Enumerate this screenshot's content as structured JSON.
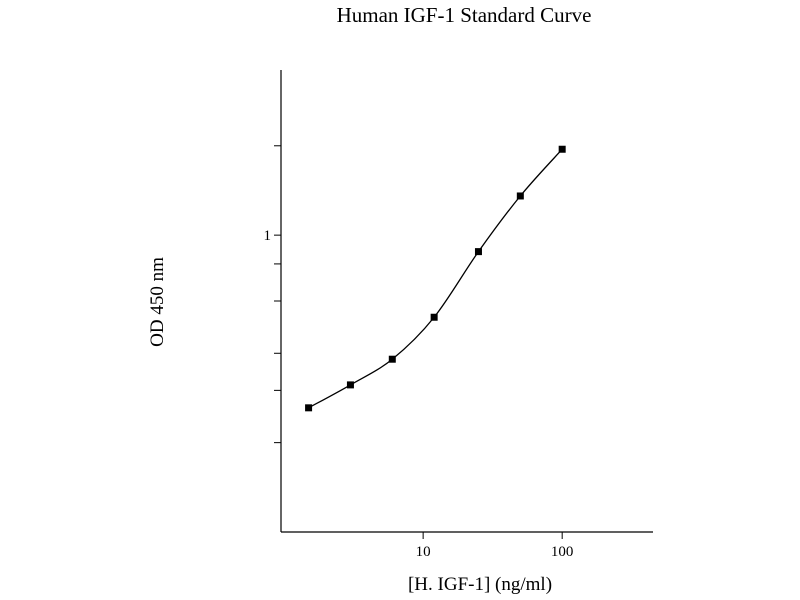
{
  "chart_data": {
    "type": "line",
    "title": "Human IGF-1 Standard Curve",
    "xlabel": "[H. IGF-1] (ng/ml)",
    "ylabel": "OD 450 nm",
    "x_scale": "log",
    "y_scale": "log",
    "xlim": [
      0.95,
      450
    ],
    "ylim": [
      0.1,
      3.6
    ],
    "x_tick_labels": [
      {
        "value": 10,
        "label": "10"
      },
      {
        "value": 100,
        "label": "100"
      }
    ],
    "y_tick_labels": [
      {
        "value": 1,
        "label": "1"
      }
    ],
    "x_major_ticks": [
      10,
      100
    ],
    "y_ticks": [
      0.2,
      0.3,
      0.4,
      0.6,
      0.8,
      1,
      2
    ],
    "grid": false,
    "series": [
      {
        "x": [
          1.5,
          3,
          6,
          12,
          25,
          50,
          100
        ],
        "y": [
          0.262,
          0.313,
          0.382,
          0.529,
          0.88,
          1.355,
          1.947
        ],
        "marker": "square",
        "color": "#000000"
      }
    ]
  }
}
